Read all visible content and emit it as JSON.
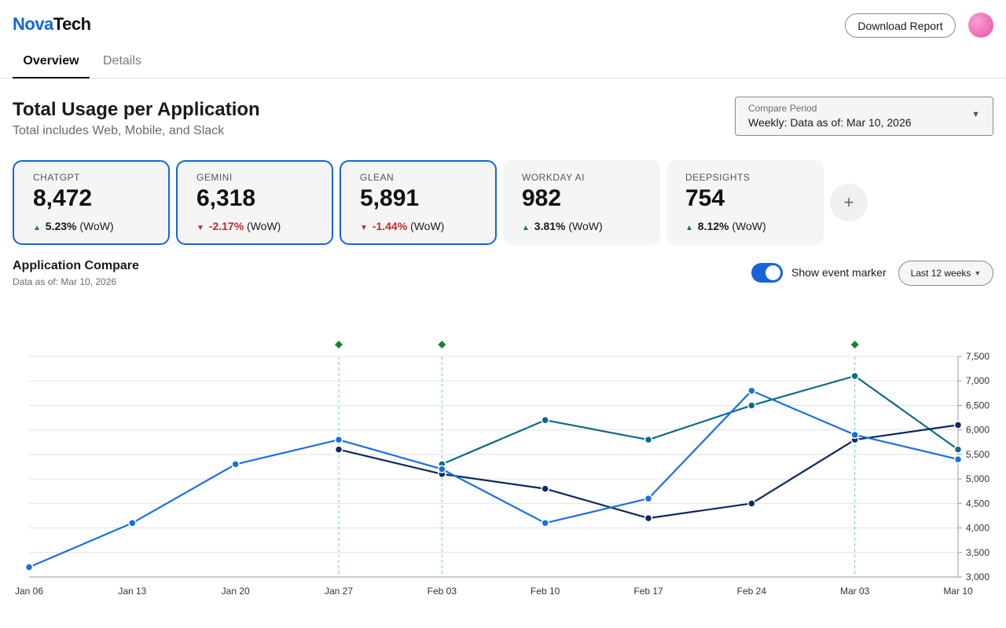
{
  "app": {
    "logo_part1": "Nova",
    "logo_part2": "Tech",
    "download_label": "Download Report"
  },
  "tabs": [
    {
      "label": "Overview",
      "active": true
    },
    {
      "label": "Details",
      "active": false
    }
  ],
  "header": {
    "title": "Total Usage per Application",
    "subtitle": "Total includes Web, Mobile, and Slack"
  },
  "compare": {
    "label": "Compare Period",
    "value": "Weekly: Data as of: Mar 10, 2026"
  },
  "cards": [
    {
      "name": "CHATGPT",
      "value": "8,472",
      "direction": "up",
      "pct": "5.23%",
      "suffix": "(WoW)",
      "selected": true
    },
    {
      "name": "GEMINI",
      "value": "6,318",
      "direction": "down",
      "pct": "-2.17%",
      "suffix": "(WoW)",
      "selected": true
    },
    {
      "name": "GLEAN",
      "value": "5,891",
      "direction": "down",
      "pct": "-1.44%",
      "suffix": "(WoW)",
      "selected": true
    },
    {
      "name": "WORKDAY AI",
      "value": "982",
      "direction": "up",
      "pct": "3.81%",
      "suffix": "(WoW)",
      "selected": false
    },
    {
      "name": "DEEPSIGHTS",
      "value": "754",
      "direction": "up",
      "pct": "8.12%",
      "suffix": "(WoW)",
      "selected": false
    }
  ],
  "add_card_label": "+",
  "compare_section": {
    "title": "Application Compare",
    "subtitle": "Data as of: Mar 10, 2026",
    "toggle_label": "Show event marker",
    "toggle_on": true,
    "range_label": "Last 12 weeks"
  },
  "colors": {
    "accent": "#1565d8",
    "series_blue": "#1a6fe0",
    "series_navy": "#0d2a5c",
    "series_teal": "#0b6b86",
    "event_marker": "#1b7f3b",
    "up": "#1b7f3b",
    "down": "#c62828"
  },
  "chart_data": {
    "type": "line",
    "x": [
      "Jan 06",
      "Jan 13",
      "Jan 20",
      "Jan 27",
      "Feb 03",
      "Feb 10",
      "Feb 17",
      "Feb 24",
      "Mar 03",
      "Mar 10"
    ],
    "ylim": [
      3000,
      7500
    ],
    "yticks": [
      3000,
      3500,
      4000,
      4500,
      5000,
      5500,
      6000,
      6500,
      7000,
      7500
    ],
    "ytick_labels": [
      "3,000",
      "3,500",
      "4,000",
      "4,500",
      "5,000",
      "5,500",
      "6,000",
      "6,500",
      "7,000",
      "7,500"
    ],
    "grid": true,
    "y_axis_side": "right",
    "series": [
      {
        "key": "blue",
        "color": "#1a6fe0",
        "values": [
          3200,
          4100,
          5300,
          5800,
          5200,
          4100,
          4600,
          6800,
          5900,
          5400
        ]
      },
      {
        "key": "navy",
        "color": "#0d2a5c",
        "values": [
          null,
          null,
          null,
          5600,
          5100,
          4800,
          4200,
          4500,
          5800,
          6100
        ]
      },
      {
        "key": "teal",
        "color": "#0b6b86",
        "values": [
          null,
          null,
          null,
          null,
          5300,
          6200,
          5800,
          6500,
          7100,
          5600
        ]
      }
    ],
    "event_markers": [
      "Jan 27",
      "Feb 03",
      "Mar 03"
    ]
  }
}
